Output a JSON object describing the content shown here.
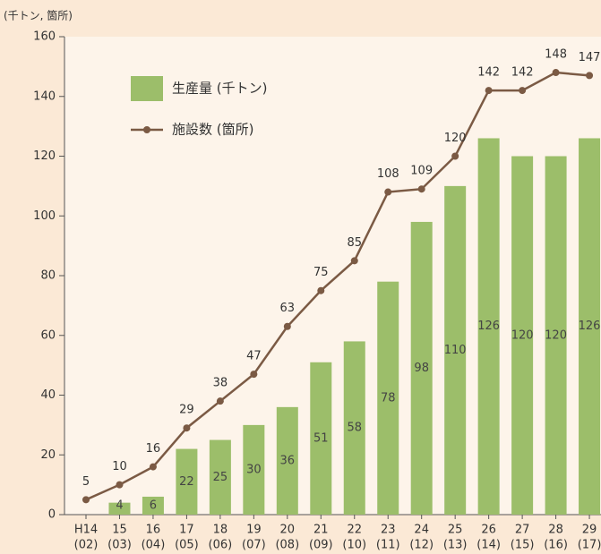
{
  "chart_data": {
    "type": "bar_line",
    "y_axis_label": "(千トン, 箇所)",
    "categories": [
      "H14",
      "15",
      "16",
      "17",
      "18",
      "19",
      "20",
      "21",
      "22",
      "23",
      "24",
      "25",
      "26",
      "27",
      "28",
      "29"
    ],
    "categories_sub": [
      "(02)",
      "(03)",
      "(04)",
      "(05)",
      "(06)",
      "(07)",
      "(08)",
      "(09)",
      "(10)",
      "(11)",
      "(12)",
      "(13)",
      "(14)",
      "(15)",
      "(16)",
      "(17)"
    ],
    "series": [
      {
        "name": "生産量 (千トン)",
        "color": "#9cbe6a",
        "kind": "bar",
        "values": [
          null,
          4,
          6,
          22,
          25,
          30,
          36,
          51,
          58,
          78,
          98,
          110,
          126,
          120,
          120,
          126
        ]
      },
      {
        "name": "施設数 (箇所)",
        "color": "#7b5a44",
        "kind": "line",
        "values": [
          5,
          10,
          16,
          29,
          38,
          47,
          63,
          75,
          85,
          108,
          109,
          120,
          142,
          142,
          148,
          147
        ]
      }
    ],
    "ylim": [
      0,
      160
    ],
    "yticks": [
      0,
      20,
      40,
      60,
      80,
      100,
      120,
      140,
      160
    ]
  }
}
